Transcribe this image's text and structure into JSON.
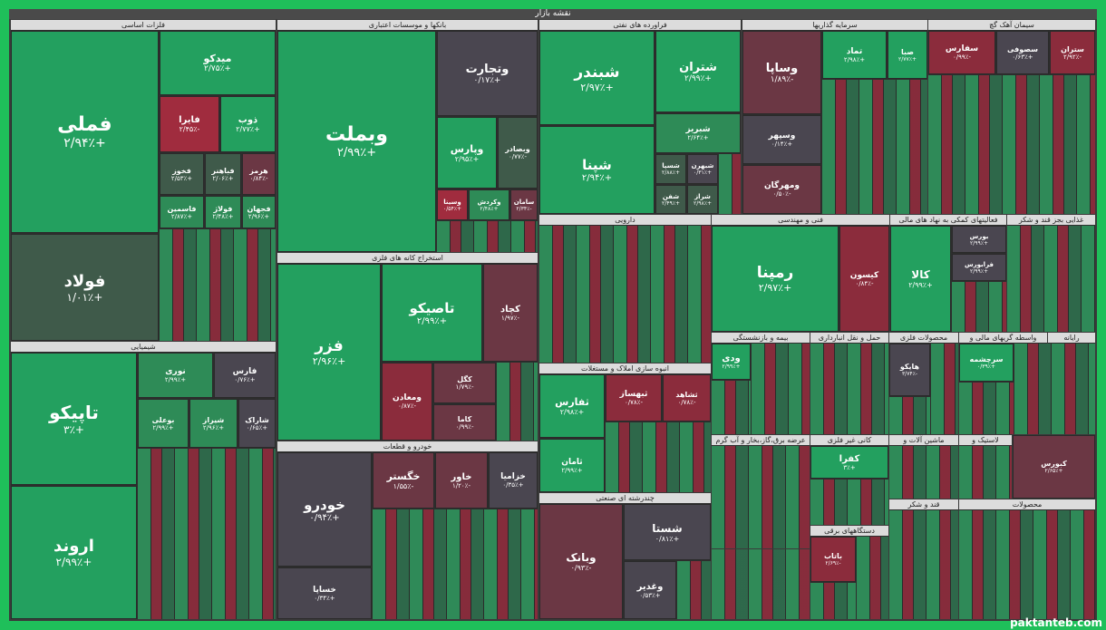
{
  "header": "نقشه بازار",
  "watermark": "paktanteb.com",
  "sections": {
    "s1": "فلزات اساسی",
    "s2": "بانکها و موسسات اعتباری",
    "s3": "فراورده های نفتی",
    "s4": "سرمایه گذاریها",
    "s5": "سیمان آهک گچ",
    "s6": "شیمیایی",
    "s7": "استخراج کانه های فلزی",
    "s8": "دارویی",
    "s9": "فنی و مهندسی",
    "s10": "فعالیتهای کمکی به نهاد های مالی",
    "s11": "غذایی بجز قند و شکر",
    "s12": "خودرو و قطعات",
    "s13": "انبوه سازی املاک و مستغلات",
    "s14": "بیمه و بازنشستگی",
    "s15": "حمل و نقل انبارداری",
    "s16": "محصولات فلزی",
    "s17": "واسطه گریهای مالی و",
    "s18": "رایانه",
    "s19": "چندرشته ای صنعتی",
    "s20": "عرضه برق،گاز،بخار و آب گرم",
    "s21": "دستگاههای برقی",
    "s22": "کانی غیر فلزی",
    "s23": "ماشین آلات و",
    "s24": "لاستیک و",
    "s25": "قند و شکر",
    "s26": "محصولات"
  },
  "tiles": {
    "t1": {
      "name": "فملی",
      "pct": "+۲/۹۴٪"
    },
    "t2": {
      "name": "فولاد",
      "pct": "+۱/۰۱٪"
    },
    "t3": {
      "name": "میدکو",
      "pct": "+۲/۷۵٪"
    },
    "t4": {
      "name": "فایرا",
      "pct": "-۲/۴۵٪"
    },
    "t5": {
      "name": "ذوب",
      "pct": "+۲/۷۷٪"
    },
    "t6": {
      "name": "فخوز",
      "pct": "+۲/۵۳٪"
    },
    "t7": {
      "name": "فباهنر",
      "pct": "+۲/۰۶٪"
    },
    "t8": {
      "name": "هرمز",
      "pct": "-۰/۸۴٪"
    },
    "t9": {
      "name": "فاسمین",
      "pct": "+۲/۸۷٪"
    },
    "t10": {
      "name": "فولاژ",
      "pct": "+۲/۴۸٪"
    },
    "t11": {
      "name": "فجهان",
      "pct": "+۲/۹۶٪"
    },
    "t12": {
      "name": "وبملت",
      "pct": "+۲/۹۹٪"
    },
    "t13": {
      "name": "وتجارت",
      "pct": "+۰/۱۷٪"
    },
    "t14": {
      "name": "وپارس",
      "pct": "+۲/۹۵٪"
    },
    "t15": {
      "name": "وبصادر",
      "pct": "-۰/۷۷٪"
    },
    "t16": {
      "name": "وسینا",
      "pct": "+۰/۵۴٪"
    },
    "t17": {
      "name": "وکردش",
      "pct": "+۲/۴۸٪"
    },
    "t18": {
      "name": "سامان",
      "pct": "-۲/۳۴٪"
    },
    "t19": {
      "name": "شبندر",
      "pct": "+۲/۹۷٪"
    },
    "t20": {
      "name": "شپنا",
      "pct": "+۲/۹۴٪"
    },
    "t21": {
      "name": "شتران",
      "pct": "+۲/۹۹٪"
    },
    "t22": {
      "name": "شبریز",
      "pct": "+۲/۶۴٪"
    },
    "t23": {
      "name": "شسپا",
      "pct": "+۲/۸۸٪"
    },
    "t24": {
      "name": "شبهرن",
      "pct": "+۰/۳۱٪"
    },
    "t25": {
      "name": "شفن",
      "pct": "+۲/۴۹٪"
    },
    "t26": {
      "name": "شراز",
      "pct": "+۲/۹۸٪"
    },
    "t27": {
      "name": "وساپا",
      "pct": "-۱/۸۹٪"
    },
    "t28": {
      "name": "وسپهر",
      "pct": "+۰/۱۴٪"
    },
    "t29": {
      "name": "ومهرگان",
      "pct": "-۰/۵۰٪"
    },
    "t30": {
      "name": "تماد",
      "pct": "+۲/۹۸٪"
    },
    "t31": {
      "name": "صبا",
      "pct": "+۲/۷۷٪"
    },
    "t32": {
      "name": "سفارس",
      "pct": "-۰/۹۹٪"
    },
    "t33": {
      "name": "سصوفی",
      "pct": "+۰/۶۳٪"
    },
    "t34": {
      "name": "ستران",
      "pct": "-۲/۹۲٪"
    },
    "t35": {
      "name": "تاپیکو",
      "pct": "+۳٪"
    },
    "t36": {
      "name": "اروند",
      "pct": "+۲/۹۹٪"
    },
    "t37": {
      "name": "نوری",
      "pct": "+۲/۹۹٪"
    },
    "t38": {
      "name": "فارس",
      "pct": "+۰/۷۶٪"
    },
    "t39": {
      "name": "بوعلی",
      "pct": "+۲/۹۹٪"
    },
    "t40": {
      "name": "شیراز",
      "pct": "+۲/۹۶٪"
    },
    "t41": {
      "name": "شاراک",
      "pct": "+۰/۶۵٪"
    },
    "t42": {
      "name": "فزر",
      "pct": "+۲/۹۶٪"
    },
    "t43": {
      "name": "تاصیکو",
      "pct": "+۲/۹۹٪"
    },
    "t44": {
      "name": "کچاد",
      "pct": "-۱/۹۷٪"
    },
    "t45": {
      "name": "ومعادن",
      "pct": "-۰/۸۷٪"
    },
    "t46": {
      "name": "کگل",
      "pct": "-۱/۷۹٪"
    },
    "t47": {
      "name": "کاما",
      "pct": "-۰/۹۹٪"
    },
    "t48": {
      "name": "خودرو",
      "pct": "+۰/۹۴٪"
    },
    "t49": {
      "name": "خگستر",
      "pct": "-۱/۵۵٪"
    },
    "t50": {
      "name": "خاور",
      "pct": "-۱/۲۰٪"
    },
    "t51": {
      "name": "خزامیا",
      "pct": "+۰/۳۵٪"
    },
    "t52": {
      "name": "خساپا",
      "pct": "+۰/۳۴٪"
    },
    "t53": {
      "name": "ثفارس",
      "pct": "+۲/۹۸٪"
    },
    "t54": {
      "name": "ثامان",
      "pct": "+۲/۹۹٪"
    },
    "t55": {
      "name": "ثبهساز",
      "pct": "-۰/۷۸٪"
    },
    "t56": {
      "name": "ثشاهد",
      "pct": "-۰/۷۸٪"
    },
    "t57": {
      "name": "رمپنا",
      "pct": "+۲/۹۷٪"
    },
    "t58": {
      "name": "کیسون",
      "pct": "-۰/۸۴٪"
    },
    "t59": {
      "name": "کالا",
      "pct": "+۲/۹۹٪"
    },
    "t60": {
      "name": "بورس",
      "pct": "+۲/۹۹٪"
    },
    "t61": {
      "name": "فرابورس",
      "pct": "+۲/۹۹٪"
    },
    "t62": {
      "name": "وبانک",
      "pct": "-۰/۹۳٪"
    },
    "t63": {
      "name": "شستا",
      "pct": "+۰/۸۱٪"
    },
    "t64": {
      "name": "وغدیر",
      "pct": "+۰/۵۳٪"
    },
    "t65": {
      "name": "بافق",
      "pct": "+۲/۹۸٪"
    },
    "t66": {
      "name": "وبیمه",
      "pct": "+۲/۹۹٪"
    },
    "t67": {
      "name": "ودی",
      "pct": "+۲/۹۹٪"
    },
    "t68": {
      "name": "هایکو",
      "pct": "-۳/۷۴٪"
    },
    "t69": {
      "name": "کفرا",
      "pct": "+۳٪"
    },
    "t70": {
      "name": "سرچشمه",
      "pct": "+۰/۳۹٪"
    },
    "t71": {
      "name": "باتاب",
      "pct": "-۲/۶۹٪"
    },
    "t72": {
      "name": "کبورس",
      "pct": "+۲/۶۵٪"
    }
  }
}
